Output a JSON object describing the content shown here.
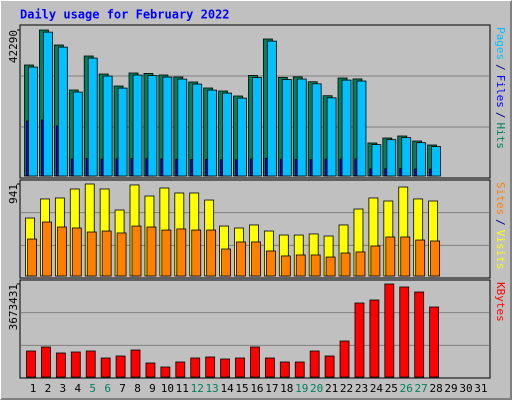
{
  "chart_data": {
    "type": "bar",
    "title": "Daily usage for February 2022",
    "title_color": "#0000ff",
    "categories": [
      "1",
      "2",
      "3",
      "4",
      "5",
      "6",
      "7",
      "8",
      "9",
      "10",
      "11",
      "12",
      "13",
      "14",
      "15",
      "16",
      "17",
      "18",
      "19",
      "20",
      "21",
      "22",
      "23",
      "24",
      "25",
      "26",
      "27",
      "28",
      "29",
      "30",
      "31"
    ],
    "category_colors": [
      "#000000",
      "#000000",
      "#000000",
      "#000000",
      "#00805c",
      "#00805c",
      "#000000",
      "#000000",
      "#000000",
      "#000000",
      "#000000",
      "#00805c",
      "#00805c",
      "#000000",
      "#000000",
      "#000000",
      "#000000",
      "#000000",
      "#00805c",
      "#00805c",
      "#000000",
      "#000000",
      "#000000",
      "#000000",
      "#000000",
      "#00805c",
      "#00805c",
      "#000000",
      "#000000",
      "#000000",
      "#000000"
    ],
    "legend_separator": "/",
    "panels": [
      {
        "ylim": [
          0,
          42290
        ],
        "yticks": [
          42290
        ],
        "series": [
          {
            "name": "Hits",
            "color": "#00805c",
            "values": [
              32152,
              42290,
              37945,
              24911,
              34759,
              29545,
              26069,
              29835,
              29712,
              29256,
              28676,
              27228,
              25490,
              24621,
              23173,
              29130,
              39683,
              28571,
              28702,
              27301,
              23255,
              28387,
              28120,
              9559,
              11007,
              11586,
              10138,
              8979,
              null,
              null,
              null
            ]
          },
          {
            "name": "Files",
            "color": "#0000ff",
            "values": [
              15930,
              16220,
              14480,
              4920,
              5010,
              4870,
              4950,
              5080,
              4990,
              4930,
              4860,
              4790,
              4820,
              4750,
              4700,
              4930,
              5120,
              4880,
              4840,
              4790,
              4880,
              4910,
              4950,
              2030,
              2110,
              2180,
              2070,
              1990,
              null,
              null,
              null
            ]
          },
          {
            "name": "Pages",
            "color": "#00c0ff",
            "values": [
              31550,
              41670,
              37330,
              24300,
              34150,
              28950,
              25460,
              29230,
              29100,
              28650,
              28070,
              26620,
              24880,
              24010,
              22560,
              28520,
              39070,
              27960,
              28090,
              26690,
              22640,
              27780,
              27510,
              9090,
              10520,
              11110,
              9650,
              8500,
              null,
              null,
              null
            ]
          }
        ]
      },
      {
        "ylim": [
          0,
          941
        ],
        "yticks": [
          941
        ],
        "series": [
          {
            "name": "Visits",
            "color": "#ffff00",
            "values": [
              593,
              788,
              798,
              890,
              941,
              890,
              675,
              931,
              818,
              900,
              849,
              849,
              777,
              511,
              491,
              522,
              460,
              419,
              419,
              430,
              409,
              522,
              685,
              798,
              767,
              910,
              788,
              767,
              null,
              null,
              null
            ]
          },
          {
            "name": "Sites",
            "color": "#ff8000",
            "values": [
              378,
              552,
              501,
              491,
              450,
              460,
              440,
              511,
              501,
              470,
              481,
              470,
              470,
              276,
              348,
              348,
              256,
              205,
              215,
              215,
              194,
              235,
              246,
              307,
              399,
              399,
              368,
              358,
              null,
              null,
              null
            ]
          }
        ]
      },
      {
        "ylim": [
          0,
          3673431
        ],
        "yticks": [
          3673431
        ],
        "series": [
          {
            "name": "KBytes",
            "color": "#ff0000",
            "values": [
              1026974,
              1184970,
              947976,
              987475,
              1026974,
              750481,
              829479,
              1066473,
              552986,
              394990,
              592485,
              750481,
              789980,
              710982,
              750481,
              1184970,
              750481,
              592485,
              592485,
              1026974,
              829479,
              1421964,
              2922926,
              3041423,
              3673431,
              3554910,
              3357415,
              2764930,
              null,
              null,
              null
            ]
          }
        ]
      }
    ]
  }
}
